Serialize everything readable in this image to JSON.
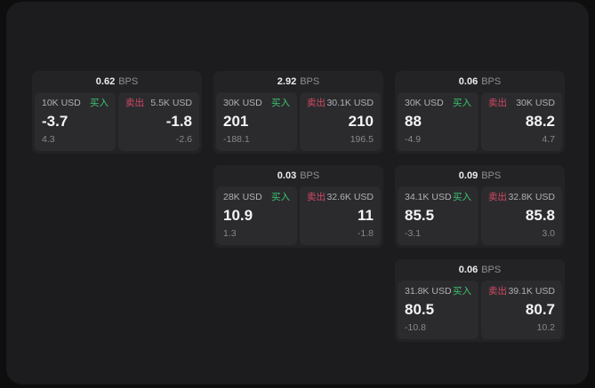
{
  "colors": {
    "buy": "#3cc46e",
    "sell": "#d24a63",
    "panel_bg": "#1c1c1e",
    "card_bg": "#232326",
    "tile_bg": "#2b2b2e"
  },
  "labels": {
    "bps_unit": "BPS",
    "buy": "买入",
    "sell": "卖出"
  },
  "cards": [
    {
      "col": 1,
      "row": 1,
      "bps": "0.62",
      "buy": {
        "amount": "10K USD",
        "price": "-3.7",
        "delta": "4.3"
      },
      "sell": {
        "amount": "5.5K USD",
        "price": "-1.8",
        "delta": "-2.6"
      }
    },
    {
      "col": 2,
      "row": 1,
      "bps": "2.92",
      "buy": {
        "amount": "30K USD",
        "price": "201",
        "delta": "-188.1"
      },
      "sell": {
        "amount": "30.1K USD",
        "price": "210",
        "delta": "196.5"
      }
    },
    {
      "col": 3,
      "row": 1,
      "bps": "0.06",
      "buy": {
        "amount": "30K USD",
        "price": "88",
        "delta": "-4.9"
      },
      "sell": {
        "amount": "30K USD",
        "price": "88.2",
        "delta": "4.7"
      }
    },
    {
      "col": 2,
      "row": 2,
      "bps": "0.03",
      "buy": {
        "amount": "28K USD",
        "price": "10.9",
        "delta": "1.3"
      },
      "sell": {
        "amount": "32.6K USD",
        "price": "11",
        "delta": "-1.8"
      }
    },
    {
      "col": 3,
      "row": 2,
      "bps": "0.09",
      "buy": {
        "amount": "34.1K USD",
        "price": "85.5",
        "delta": "-3.1"
      },
      "sell": {
        "amount": "32.8K USD",
        "price": "85.8",
        "delta": "3.0"
      }
    },
    {
      "col": 3,
      "row": 3,
      "bps": "0.06",
      "buy": {
        "amount": "31.8K USD",
        "price": "80.5",
        "delta": "-10.8"
      },
      "sell": {
        "amount": "39.1K USD",
        "price": "80.7",
        "delta": "10.2"
      }
    }
  ]
}
